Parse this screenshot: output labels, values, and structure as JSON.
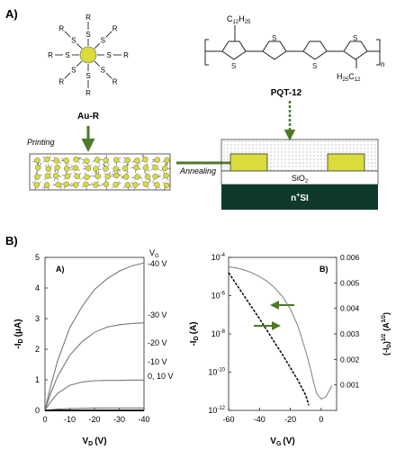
{
  "panel_a": {
    "label": "A)",
    "au_label": "Au-R",
    "r_letter": "R",
    "s_letter": "S",
    "polymer_label": "PQT-12",
    "sub_top": "C",
    "sub_top_num": "12",
    "sub_top_h": "H",
    "sub_top_h_num": "25",
    "sub_bottom_h": "H",
    "sub_bottom_h_num": "25",
    "sub_bottom_c": "C",
    "sub_bottom_c_num": "12",
    "repeat_n": "n",
    "printing_label": "Printing",
    "annealing_label": "Annealing",
    "sio2_label": "SiO",
    "sio2_sub": "2",
    "nsi_label": "n",
    "nsi_sup": "+",
    "nsi_rest": "SI",
    "colors": {
      "gold": "#d9dc3b",
      "arrow": "#4e7a27",
      "substrate": "#0f3a2a"
    }
  },
  "panel_b": {
    "label": "B)"
  },
  "chart_data": [
    {
      "type": "line",
      "panel": "A)",
      "xlabel": "V",
      "xlabel_sub": "D",
      "xlabel_unit": "(V)",
      "ylabel": "-I",
      "ylabel_sub": "D",
      "ylabel_unit": "(μA)",
      "xlim": [
        0,
        -40
      ],
      "ylim": [
        0,
        5
      ],
      "xticks": [
        "0",
        "-10",
        "-20",
        "-30",
        "-40"
      ],
      "yticks": [
        "0",
        "1",
        "2",
        "3",
        "4",
        "5"
      ],
      "legend_header": "V",
      "legend_header_sub": "G",
      "series": [
        {
          "name": "-40 V",
          "x": [
            0,
            -2,
            -5,
            -10,
            -15,
            -20,
            -25,
            -30,
            -35,
            -40
          ],
          "values": [
            0,
            0.7,
            1.6,
            2.7,
            3.4,
            3.95,
            4.3,
            4.55,
            4.72,
            4.82
          ]
        },
        {
          "name": "-30 V",
          "x": [
            0,
            -2,
            -5,
            -10,
            -15,
            -20,
            -25,
            -30,
            -35,
            -40
          ],
          "values": [
            0,
            0.5,
            1.1,
            1.8,
            2.25,
            2.55,
            2.72,
            2.8,
            2.84,
            2.86
          ]
        },
        {
          "name": "-20 V",
          "x": [
            0,
            -2,
            -5,
            -10,
            -15,
            -20,
            -25,
            -30,
            -35,
            -40
          ],
          "values": [
            0,
            0.25,
            0.55,
            0.82,
            0.93,
            0.97,
            0.98,
            0.98,
            0.99,
            0.99
          ]
        },
        {
          "name": "-10 V",
          "x": [
            0,
            -5,
            -10,
            -20,
            -30,
            -40
          ],
          "values": [
            0,
            0.04,
            0.06,
            0.08,
            0.08,
            0.08
          ]
        },
        {
          "name": "0, 10 V",
          "x": [
            0,
            -40
          ],
          "values": [
            0,
            0
          ]
        }
      ]
    },
    {
      "type": "line",
      "panel": "B)",
      "xlabel": "V",
      "xlabel_sub": "G",
      "xlabel_unit": "(V)",
      "ylabel": "-I",
      "ylabel_sub": "D",
      "ylabel_unit": "(A)",
      "y2label": "(-I",
      "y2label_sub": "D",
      "y2label_mid": ")",
      "y2label_sup": "1/2",
      "y2label_unit": "(A",
      "y2label_unit_sup": "1/2",
      "y2label_end": ")",
      "xlim": [
        -60,
        10
      ],
      "ylim_log": [
        -12,
        -4
      ],
      "y2lim": [
        0,
        0.006
      ],
      "xticks": [
        "-60",
        "-40",
        "-20",
        "0"
      ],
      "yticks_base": "10",
      "yticks_exp": [
        "-12",
        "-10",
        "-8",
        "-6",
        "-4"
      ],
      "y2ticks": [
        "0.001",
        "0.002",
        "0.003",
        "0.004",
        "0.005",
        "0.006"
      ],
      "series": [
        {
          "name": "-I_D (log)",
          "axis": "left",
          "x": [
            -60,
            -55,
            -50,
            -45,
            -40,
            -35,
            -30,
            -25,
            -20,
            -15,
            -10,
            -7,
            -5,
            -3,
            0,
            3,
            5,
            7
          ],
          "values": [
            -4.5,
            -4.55,
            -4.65,
            -4.8,
            -5.0,
            -5.25,
            -5.6,
            -6.05,
            -6.7,
            -7.6,
            -8.9,
            -9.8,
            -10.5,
            -11.1,
            -11.4,
            -11.3,
            -11.0,
            -10.7
          ]
        },
        {
          "name": "(-I_D)^1/2",
          "axis": "right",
          "x": [
            -60,
            -55,
            -50,
            -45,
            -40,
            -35,
            -30,
            -25,
            -20,
            -15,
            -10,
            -8
          ],
          "values": [
            0.0054,
            0.00495,
            0.0045,
            0.00405,
            0.0036,
            0.00312,
            0.00265,
            0.00218,
            0.00168,
            0.00118,
            0.0006,
            0.0002
          ]
        }
      ]
    }
  ]
}
